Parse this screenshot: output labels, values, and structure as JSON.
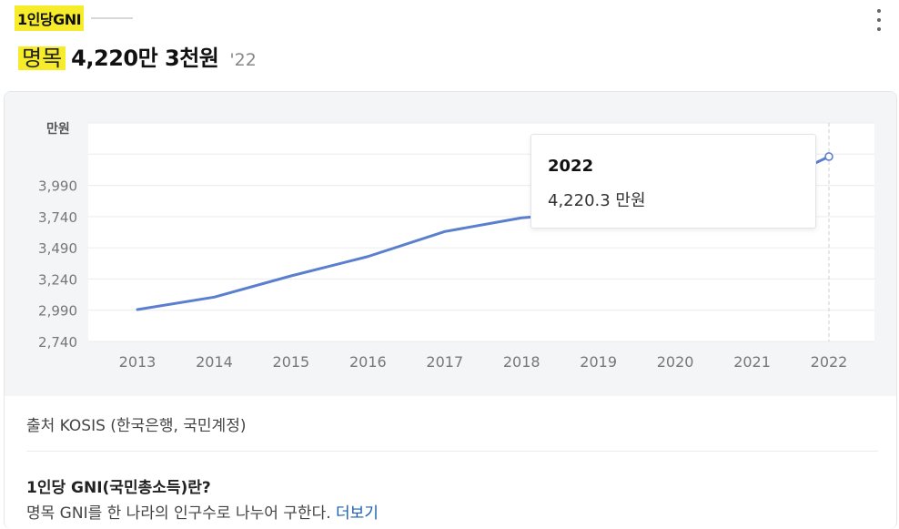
{
  "header": {
    "tag_title": "1인당GNI",
    "label": "명목",
    "value": "4,220만 3천원",
    "year": "'22"
  },
  "tooltip": {
    "year": "2022",
    "value": "4,220.3 만원"
  },
  "source": "출처 KOSIS (한국은행, 국민계정)",
  "faq": {
    "title": "1인당 GNI(국민총소득)란?",
    "description": "명목 GNI를 한 나라의 인구수로 나누어 구한다.",
    "more_label": "더보기"
  },
  "colors": {
    "line": "#5b7fcf",
    "highlight": "#f7ec2a",
    "link": "#1a5fb4"
  },
  "chart_data": {
    "type": "line",
    "ylabel": "만원",
    "categories": [
      "2013",
      "2014",
      "2015",
      "2016",
      "2017",
      "2018",
      "2019",
      "2020",
      "2021",
      "2022"
    ],
    "x": [
      2013,
      2014,
      2015,
      2016,
      2017,
      2018,
      2019,
      2020,
      2021,
      2022
    ],
    "y": [
      2995,
      3095,
      3265,
      3420,
      3620,
      3730,
      3780,
      3800,
      3930,
      4220.3
    ],
    "yticks": [
      2740,
      2990,
      3240,
      3490,
      3740,
      3990
    ],
    "ytick_labels": [
      "2,740",
      "2,990",
      "3,240",
      "3,490",
      "3,740",
      "3,990"
    ],
    "ylim": [
      2740,
      4490
    ],
    "highlight_index": 9,
    "grid": true
  }
}
